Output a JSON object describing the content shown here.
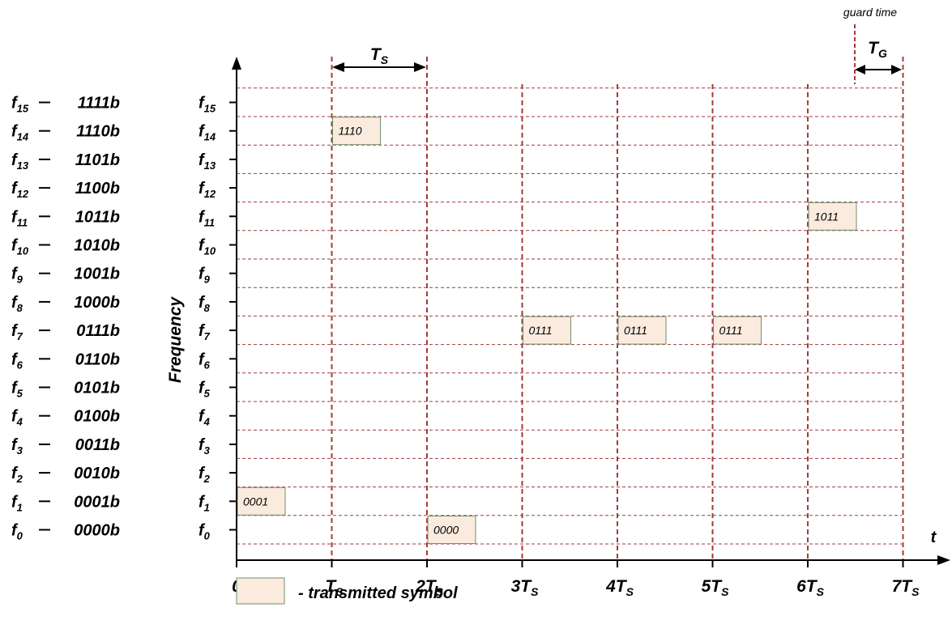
{
  "legend_codes": [
    {
      "sub": "15",
      "code": "1111b"
    },
    {
      "sub": "14",
      "code": "1110b"
    },
    {
      "sub": "13",
      "code": "1101b"
    },
    {
      "sub": "12",
      "code": "1100b"
    },
    {
      "sub": "11",
      "code": "1011b"
    },
    {
      "sub": "10",
      "code": "1010b"
    },
    {
      "sub": "9",
      "code": "1001b"
    },
    {
      "sub": "8",
      "code": "1000b"
    },
    {
      "sub": "7",
      "code": "0111b"
    },
    {
      "sub": "6",
      "code": "0110b"
    },
    {
      "sub": "5",
      "code": "0101b"
    },
    {
      "sub": "4",
      "code": "0100b"
    },
    {
      "sub": "3",
      "code": "0011b"
    },
    {
      "sub": "2",
      "code": "0010b"
    },
    {
      "sub": "1",
      "code": "0001b"
    },
    {
      "sub": "0",
      "code": "0000b"
    }
  ],
  "y_axis_label": "Frequency",
  "x_axis_label": "t",
  "x_ticks": [
    {
      "main": "0",
      "sub": ""
    },
    {
      "main": "T",
      "sub": "S"
    },
    {
      "main": "2T",
      "sub": "S"
    },
    {
      "main": "3T",
      "sub": "S"
    },
    {
      "main": "4T",
      "sub": "S"
    },
    {
      "main": "5T",
      "sub": "S"
    },
    {
      "main": "6T",
      "sub": "S"
    },
    {
      "main": "7T",
      "sub": "S"
    }
  ],
  "symbols": [
    {
      "slot": 0,
      "freq": 1,
      "label": "0001"
    },
    {
      "slot": 1,
      "freq": 14,
      "label": "1110"
    },
    {
      "slot": 2,
      "freq": 0,
      "label": "0000"
    },
    {
      "slot": 3,
      "freq": 7,
      "label": "0111"
    },
    {
      "slot": 4,
      "freq": 7,
      "label": "0111"
    },
    {
      "slot": 5,
      "freq": 7,
      "label": "0111"
    },
    {
      "slot": 6,
      "freq": 11,
      "label": "1011"
    }
  ],
  "ts_marker": {
    "main": "T",
    "sub": "S"
  },
  "tg_marker": {
    "main": "T",
    "sub": "G"
  },
  "guard_time_label": "guard time",
  "legend_key": "- transmitted symbol",
  "colors": {
    "symbol_fill": "#fbebdf",
    "symbol_border": "#6f8f6a",
    "dash_line": "#a33a3a",
    "axis": "#000000"
  }
}
